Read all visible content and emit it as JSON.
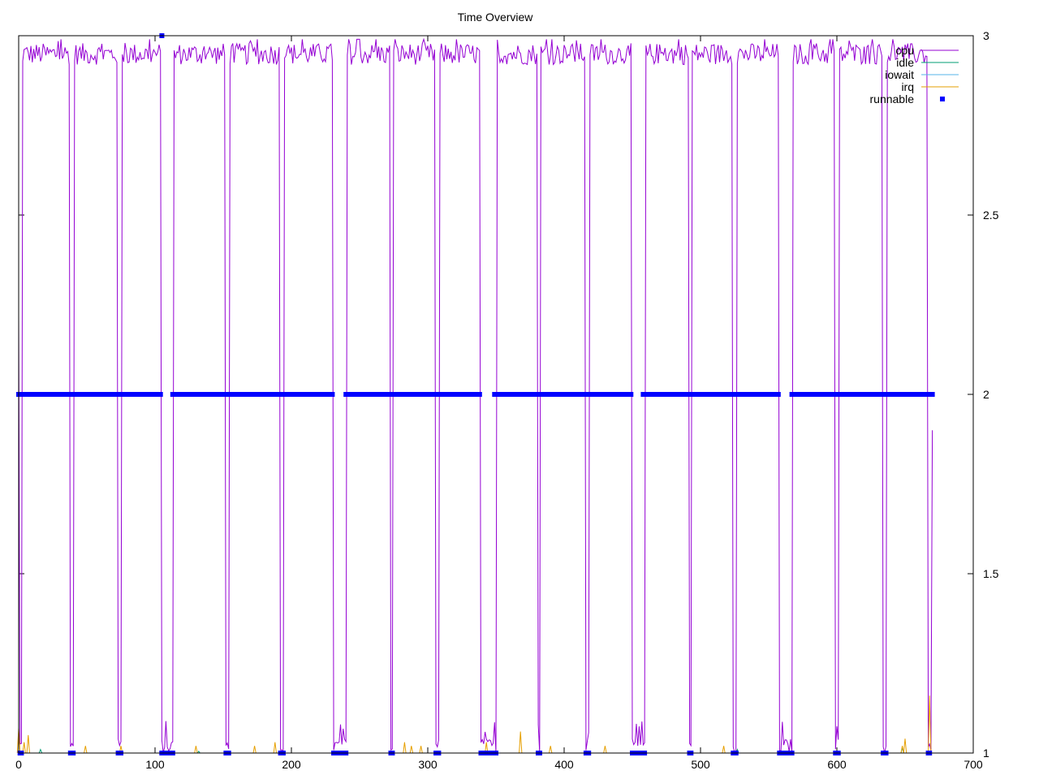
{
  "chart_data": {
    "type": "line",
    "title": "Time Overview",
    "xlabel": "",
    "ylabel": "",
    "xlim": [
      0,
      700
    ],
    "ylim": [
      1,
      3
    ],
    "x_ticks": [
      0,
      100,
      200,
      300,
      400,
      500,
      600,
      700
    ],
    "x_tick_labels": [
      "0",
      "100",
      "200",
      "300",
      "400",
      "500",
      "600",
      "700"
    ],
    "y_ticks": [
      1,
      1.5,
      2,
      2.5,
      3
    ],
    "y_tick_labels": [
      "1",
      "1.5",
      "2",
      "2.5",
      "3"
    ],
    "y_axis_side": "right",
    "grid": false,
    "legend_position": "top-right",
    "sample_count": 670,
    "busy_level": 2.94,
    "idle_level": 1.0,
    "busy_intervals": [
      [
        3,
        37
      ],
      [
        41,
        72
      ],
      [
        76,
        104
      ],
      [
        114,
        151
      ],
      [
        155,
        191
      ],
      [
        195,
        230
      ],
      [
        241,
        272
      ],
      [
        275,
        305
      ],
      [
        309,
        338
      ],
      [
        351,
        380
      ],
      [
        383,
        415
      ],
      [
        419,
        449
      ],
      [
        460,
        491
      ],
      [
        494,
        523
      ],
      [
        527,
        557
      ],
      [
        568,
        598
      ],
      [
        602,
        633
      ],
      [
        637,
        666
      ]
    ],
    "runnable_intervals": [
      [
        0,
        104
      ],
      [
        113,
        230
      ],
      [
        240,
        338
      ],
      [
        349,
        449
      ],
      [
        458,
        557
      ],
      [
        567,
        670
      ]
    ],
    "runnable_outliers": [
      {
        "x": 105,
        "y": 3
      }
    ],
    "series": [
      {
        "name": "cpu",
        "color": "#9400d3",
        "style": "line"
      },
      {
        "name": "idle",
        "color": "#009e73",
        "style": "line"
      },
      {
        "name": "iowait",
        "color": "#56b4e9",
        "style": "line"
      },
      {
        "name": "irq",
        "color": "#e69f00",
        "style": "line"
      },
      {
        "name": "runnable",
        "color": "#0000ff",
        "style": "points"
      }
    ],
    "irq_spikes": [
      {
        "x": 0,
        "y": 1.07
      },
      {
        "x": 4,
        "y": 1.03
      },
      {
        "x": 7,
        "y": 1.05
      },
      {
        "x": 49,
        "y": 1.02
      },
      {
        "x": 75,
        "y": 1.02
      },
      {
        "x": 130,
        "y": 1.02
      },
      {
        "x": 173,
        "y": 1.02
      },
      {
        "x": 188,
        "y": 1.03
      },
      {
        "x": 283,
        "y": 1.03
      },
      {
        "x": 288,
        "y": 1.02
      },
      {
        "x": 295,
        "y": 1.02
      },
      {
        "x": 343,
        "y": 1.03
      },
      {
        "x": 368,
        "y": 1.06
      },
      {
        "x": 390,
        "y": 1.02
      },
      {
        "x": 430,
        "y": 1.02
      },
      {
        "x": 517,
        "y": 1.02
      },
      {
        "x": 648,
        "y": 1.02
      },
      {
        "x": 650,
        "y": 1.04
      },
      {
        "x": 668,
        "y": 1.16
      }
    ],
    "idle_spikes": [
      {
        "x": 16,
        "y": 1.01
      },
      {
        "x": 132,
        "y": 1.005
      },
      {
        "x": 527,
        "y": 1.01
      },
      {
        "x": 648,
        "y": 1.015
      }
    ]
  }
}
